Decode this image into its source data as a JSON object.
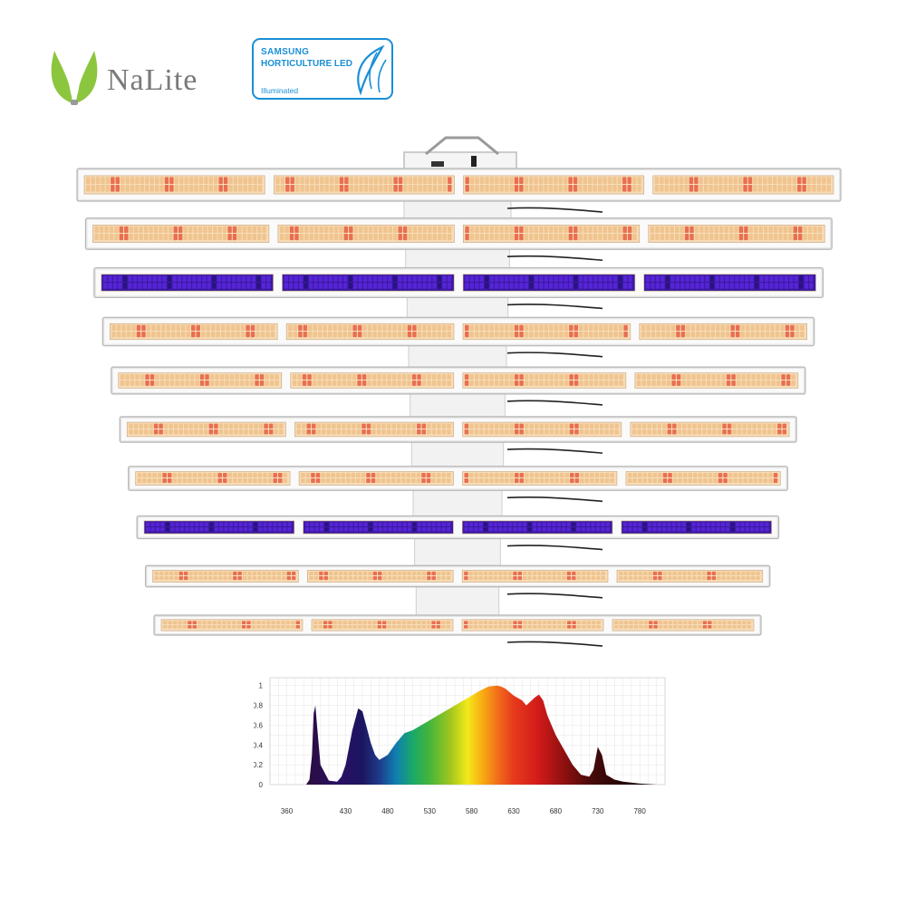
{
  "brand": {
    "name": "NaLite",
    "color": "#8cc63e"
  },
  "badge": {
    "line1": "SAMSUNG",
    "line2": "HORTICULTURE LED",
    "line3": "Illuminated",
    "color": "#1a8fd6"
  },
  "fixture": {
    "bar_count": 10,
    "bars": [
      {
        "type": "full-spectrum"
      },
      {
        "type": "full-spectrum"
      },
      {
        "type": "uv"
      },
      {
        "type": "full-spectrum"
      },
      {
        "type": "full-spectrum"
      },
      {
        "type": "full-spectrum"
      },
      {
        "type": "full-spectrum"
      },
      {
        "type": "uv"
      },
      {
        "type": "full-spectrum"
      },
      {
        "type": "full-spectrum"
      }
    ],
    "colors": {
      "white_led": "#f0c48e",
      "red_led": "#e96f50",
      "uv_led": "#5624d6",
      "frame": "#e6e6e6"
    }
  },
  "chart_data": {
    "type": "area",
    "x_ticks": [
      360,
      430,
      480,
      530,
      580,
      630,
      680,
      730,
      780
    ],
    "y_ticks": [
      0,
      0.2,
      0.4,
      0.6,
      0.8,
      1
    ],
    "xlim": [
      340,
      810
    ],
    "ylim": [
      0,
      1.08
    ],
    "grid": true,
    "series": [
      {
        "x": [
          383,
          387,
          390,
          392,
          394,
          396,
          400,
          410,
          420,
          425,
          430,
          438,
          445,
          450,
          455,
          460,
          465,
          470,
          480,
          490,
          500,
          510,
          520,
          530,
          540,
          550,
          560,
          570,
          580,
          590,
          600,
          610,
          615,
          620,
          630,
          640,
          645,
          650,
          655,
          660,
          665,
          670,
          680,
          690,
          700,
          710,
          720,
          725,
          730,
          735,
          740,
          750,
          760,
          780,
          800,
          820
        ],
        "y": [
          0,
          0.05,
          0.3,
          0.72,
          0.8,
          0.6,
          0.2,
          0.04,
          0.03,
          0.08,
          0.2,
          0.55,
          0.77,
          0.74,
          0.58,
          0.42,
          0.3,
          0.25,
          0.3,
          0.42,
          0.52,
          0.55,
          0.6,
          0.65,
          0.7,
          0.75,
          0.8,
          0.85,
          0.9,
          0.95,
          0.99,
          1.0,
          0.99,
          0.97,
          0.9,
          0.85,
          0.8,
          0.84,
          0.88,
          0.91,
          0.85,
          0.7,
          0.5,
          0.35,
          0.2,
          0.1,
          0.08,
          0.15,
          0.38,
          0.3,
          0.1,
          0.05,
          0.03,
          0.01,
          0.0,
          0.0
        ]
      }
    ]
  }
}
